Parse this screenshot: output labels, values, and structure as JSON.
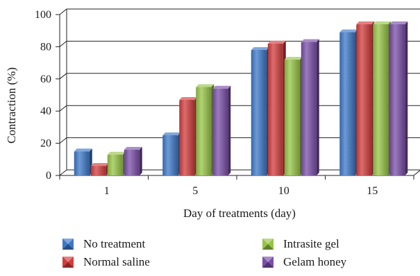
{
  "chart_data": {
    "type": "bar",
    "title": "",
    "xlabel": "Day of treatments (day)",
    "ylabel": "Contraction (%)",
    "categories": [
      "1",
      "5",
      "10",
      "15"
    ],
    "ylim": [
      0,
      100
    ],
    "yticks": [
      0,
      20,
      40,
      60,
      80,
      100
    ],
    "grid": true,
    "legend_position": "bottom",
    "series": [
      {
        "name": "No treatment",
        "color": "#3c78c8",
        "values": [
          15,
          25,
          78,
          89
        ]
      },
      {
        "name": "Normal saline",
        "color": "#d23c3c",
        "values": [
          6,
          47,
          82,
          94
        ]
      },
      {
        "name": "Intrasite gel",
        "color": "#96c446",
        "values": [
          13,
          55,
          72,
          94
        ]
      },
      {
        "name": "Gelam honey",
        "color": "#7a4ea8",
        "values": [
          16,
          54,
          83,
          94
        ]
      }
    ]
  }
}
